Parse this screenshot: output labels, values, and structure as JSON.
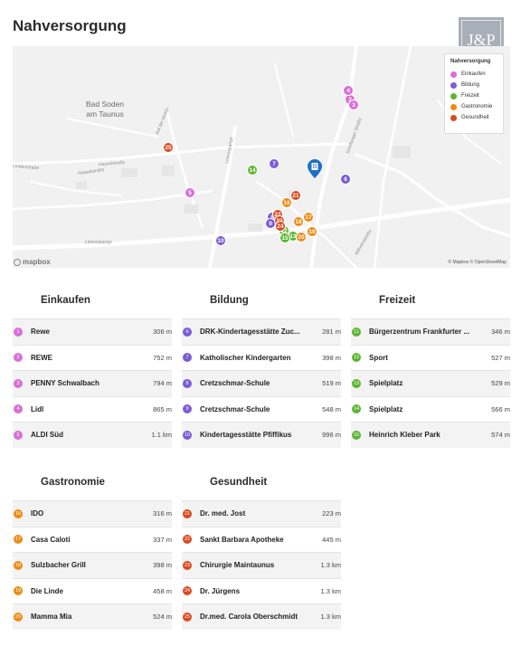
{
  "page": {
    "title": "Nahversorgung",
    "logo_text": "J&P"
  },
  "map": {
    "town_label": "Bad Soden\nam Taunus",
    "street_labels": [
      "Auf der Weide",
      "Limesspange",
      "Hasselstraße",
      "Hasselstraße",
      "Lindenstraße",
      "Limesspange",
      "Wilhelmstraße",
      "Kronberger Straße"
    ],
    "attribution": "© Mapbox © OpenStreetMap",
    "mapbox_logo": "mapbox",
    "legend": {
      "title": "Nahversorgung",
      "items": [
        {
          "label": "Einkaufen",
          "color": "#d96fd6",
          "icon": "shopping-bag-icon"
        },
        {
          "label": "Bildung",
          "color": "#7a5cd8",
          "icon": "book-icon"
        },
        {
          "label": "Freizeit",
          "color": "#5cb531",
          "icon": "leaf-icon"
        },
        {
          "label": "Gastronomie",
          "color": "#ee8a15",
          "icon": "fork-icon"
        },
        {
          "label": "Gesundheit",
          "color": "#d94a1f",
          "icon": "cross-icon"
        }
      ]
    },
    "markers": [
      "1",
      "2",
      "3",
      "4",
      "5",
      "6",
      "7",
      "8",
      "9",
      "10",
      "11",
      "12",
      "13",
      "14",
      "15",
      "16",
      "17",
      "18",
      "19",
      "20",
      "21",
      "22",
      "23",
      "24",
      "25"
    ]
  },
  "panels": [
    {
      "title": "Einkaufen",
      "color": "#d96fd6",
      "rows": [
        {
          "num": "1",
          "name": "Rewe",
          "dist": "306 m"
        },
        {
          "num": "2",
          "name": "REWE",
          "dist": "752 m"
        },
        {
          "num": "3",
          "name": "PENNY Schwalbach",
          "dist": "794 m"
        },
        {
          "num": "4",
          "name": "Lidl",
          "dist": "865 m"
        },
        {
          "num": "5",
          "name": "ALDI Süd",
          "dist": "1.1 km"
        }
      ]
    },
    {
      "title": "Bildung",
      "color": "#7a5cd8",
      "rows": [
        {
          "num": "6",
          "name": "DRK-Kindertagesstätte Zuc...",
          "dist": "281 m"
        },
        {
          "num": "7",
          "name": "Katholischer Kindergarten",
          "dist": "398 m"
        },
        {
          "num": "8",
          "name": "Cretzschmar-Schule",
          "dist": "519 m"
        },
        {
          "num": "9",
          "name": "Cretzschmar-Schule",
          "dist": "548 m"
        },
        {
          "num": "10",
          "name": "Kindertagesstätte Pfiffikus",
          "dist": "996 m"
        }
      ]
    },
    {
      "title": "Freizeit",
      "color": "#5cb531",
      "rows": [
        {
          "num": "11",
          "name": "Bürgerzentrum Frankfurter ...",
          "dist": "346 m"
        },
        {
          "num": "12",
          "name": "Sport",
          "dist": "527 m"
        },
        {
          "num": "13",
          "name": "Spielplatz",
          "dist": "529 m"
        },
        {
          "num": "14",
          "name": "Spielplatz",
          "dist": "566 m"
        },
        {
          "num": "15",
          "name": "Heinrich Kleber Park",
          "dist": "574 m"
        }
      ]
    },
    {
      "title": "Gastronomie",
      "color": "#ee8a15",
      "rows": [
        {
          "num": "16",
          "name": "IDO",
          "dist": "316 m"
        },
        {
          "num": "17",
          "name": "Casa Caloti",
          "dist": "337 m"
        },
        {
          "num": "18",
          "name": "Sulzbacher Grill",
          "dist": "398 m"
        },
        {
          "num": "19",
          "name": "Die Linde",
          "dist": "458 m"
        },
        {
          "num": "20",
          "name": "Mamma Mia",
          "dist": "524 m"
        }
      ]
    },
    {
      "title": "Gesundheit",
      "color": "#d94a1f",
      "rows": [
        {
          "num": "21",
          "name": "Dr. med. Jost",
          "dist": "223 m"
        },
        {
          "num": "22",
          "name": "Sankt Barbara Apotheke",
          "dist": "445 m"
        },
        {
          "num": "23",
          "name": "Chirurgie Maintaunus",
          "dist": "1.3 km"
        },
        {
          "num": "24",
          "name": "Dr. Jürgens",
          "dist": "1.3 km"
        },
        {
          "num": "25",
          "name": "Dr.med. Carola Oberschmidt",
          "dist": "1.3 km"
        }
      ]
    }
  ]
}
